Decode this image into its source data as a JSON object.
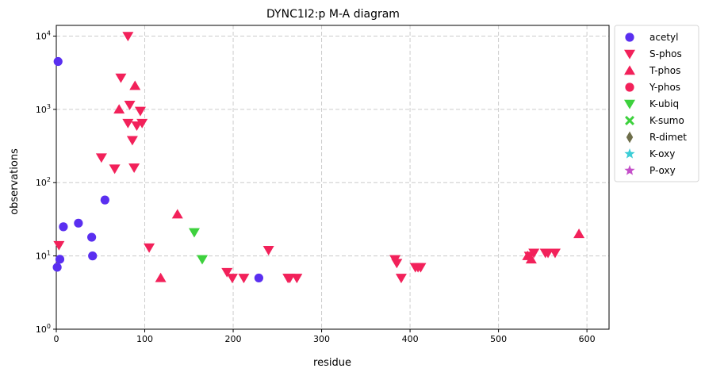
{
  "chart_data": {
    "type": "scatter",
    "title": "DYNC1I2:p M-A diagram",
    "xlabel": "residue",
    "ylabel": "observations",
    "xlim": [
      0,
      625
    ],
    "ylim": [
      1,
      14000
    ],
    "yscale": "log",
    "grid": true,
    "legend_position": "outside-right",
    "x_ticks": [
      {
        "value": 0,
        "label": "0"
      },
      {
        "value": 100,
        "label": "100"
      },
      {
        "value": 200,
        "label": "200"
      },
      {
        "value": 300,
        "label": "300"
      },
      {
        "value": 400,
        "label": "400"
      },
      {
        "value": 500,
        "label": "500"
      },
      {
        "value": 600,
        "label": "600"
      }
    ],
    "y_ticks": [
      {
        "value": 1,
        "base": "10",
        "exp": "0"
      },
      {
        "value": 10,
        "base": "10",
        "exp": "1"
      },
      {
        "value": 100,
        "base": "10",
        "exp": "2"
      },
      {
        "value": 1000,
        "base": "10",
        "exp": "3"
      },
      {
        "value": 10000,
        "base": "10",
        "exp": "4"
      }
    ],
    "series": [
      {
        "name": "acetyl",
        "marker": "circle",
        "color": "#5a2ff0",
        "points": [
          [
            2,
            4500
          ],
          [
            1,
            7
          ],
          [
            4,
            9
          ],
          [
            8,
            25
          ],
          [
            25,
            28
          ],
          [
            40,
            18
          ],
          [
            41,
            10
          ],
          [
            55,
            58
          ],
          [
            229,
            5
          ]
        ]
      },
      {
        "name": "S-phos",
        "marker": "triangle-down",
        "color": "#f2215a",
        "points": [
          [
            3,
            14
          ],
          [
            81,
            10000
          ],
          [
            73,
            2700
          ],
          [
            83,
            1150
          ],
          [
            95,
            950
          ],
          [
            81,
            650
          ],
          [
            91,
            600
          ],
          [
            97,
            650
          ],
          [
            86,
            380
          ],
          [
            51,
            220
          ],
          [
            66,
            155
          ],
          [
            88,
            160
          ],
          [
            105,
            13
          ],
          [
            193,
            6
          ],
          [
            199,
            5
          ],
          [
            212,
            5
          ],
          [
            240,
            12
          ],
          [
            262,
            5
          ],
          [
            264,
            5
          ],
          [
            272,
            5
          ],
          [
            383,
            9
          ],
          [
            385,
            8
          ],
          [
            390,
            5
          ],
          [
            406,
            7
          ],
          [
            409,
            7
          ],
          [
            412,
            7
          ],
          [
            535,
            10
          ],
          [
            540,
            11
          ],
          [
            553,
            11
          ],
          [
            556,
            11
          ],
          [
            564,
            11
          ]
        ]
      },
      {
        "name": "T-phos",
        "marker": "triangle-up",
        "color": "#f2215a",
        "points": [
          [
            71,
            1000
          ],
          [
            89,
            2100
          ],
          [
            118,
            5
          ],
          [
            137,
            37
          ],
          [
            533,
            10
          ],
          [
            537,
            9
          ],
          [
            591,
            20
          ]
        ]
      },
      {
        "name": "Y-phos",
        "marker": "circle",
        "color": "#f2215a",
        "points": []
      },
      {
        "name": "K-ubiq",
        "marker": "triangle-down",
        "color": "#3dd13d",
        "points": [
          [
            156,
            21
          ],
          [
            165,
            9
          ]
        ]
      },
      {
        "name": "K-sumo",
        "marker": "x",
        "color": "#3dd13d",
        "points": []
      },
      {
        "name": "R-dimet",
        "marker": "diamond",
        "color": "#6e6e4a",
        "points": []
      },
      {
        "name": "K-oxy",
        "marker": "star",
        "color": "#3ccdd6",
        "points": []
      },
      {
        "name": "P-oxy",
        "marker": "star",
        "color": "#c44fc9",
        "points": []
      }
    ]
  }
}
